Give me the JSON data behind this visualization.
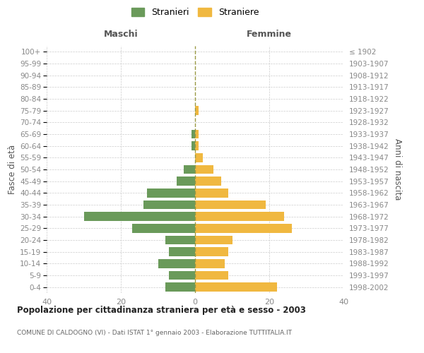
{
  "age_groups": [
    "100+",
    "95-99",
    "90-94",
    "85-89",
    "80-84",
    "75-79",
    "70-74",
    "65-69",
    "60-64",
    "55-59",
    "50-54",
    "45-49",
    "40-44",
    "35-39",
    "30-34",
    "25-29",
    "20-24",
    "15-19",
    "10-14",
    "5-9",
    "0-4"
  ],
  "birth_years": [
    "≤ 1902",
    "1903-1907",
    "1908-1912",
    "1913-1917",
    "1918-1922",
    "1923-1927",
    "1928-1932",
    "1933-1937",
    "1938-1942",
    "1943-1947",
    "1948-1952",
    "1953-1957",
    "1958-1962",
    "1963-1967",
    "1968-1972",
    "1973-1977",
    "1978-1982",
    "1983-1987",
    "1988-1992",
    "1993-1997",
    "1998-2002"
  ],
  "maschi": [
    0,
    0,
    0,
    0,
    0,
    0,
    0,
    1,
    1,
    0,
    3,
    5,
    13,
    14,
    30,
    17,
    8,
    7,
    10,
    7,
    8
  ],
  "femmine": [
    0,
    0,
    0,
    0,
    0,
    1,
    0,
    1,
    1,
    2,
    5,
    7,
    9,
    19,
    24,
    26,
    10,
    9,
    8,
    9,
    22
  ],
  "color_maschi": "#6a9a5a",
  "color_femmine": "#f0b840",
  "title": "Popolazione per cittadinanza straniera per età e sesso - 2003",
  "subtitle": "COMUNE DI CALDOGNO (VI) - Dati ISTAT 1° gennaio 2003 - Elaborazione TUTTITALIA.IT",
  "header_left": "Maschi",
  "header_right": "Femmine",
  "ylabel_left": "Fasce di età",
  "ylabel_right": "Anni di nascita",
  "legend_maschi": "Stranieri",
  "legend_femmine": "Straniere",
  "xlim": 40,
  "background_color": "#ffffff",
  "grid_color": "#cccccc",
  "text_color": "#888888",
  "header_color": "#555555",
  "center_line_color": "#999944"
}
